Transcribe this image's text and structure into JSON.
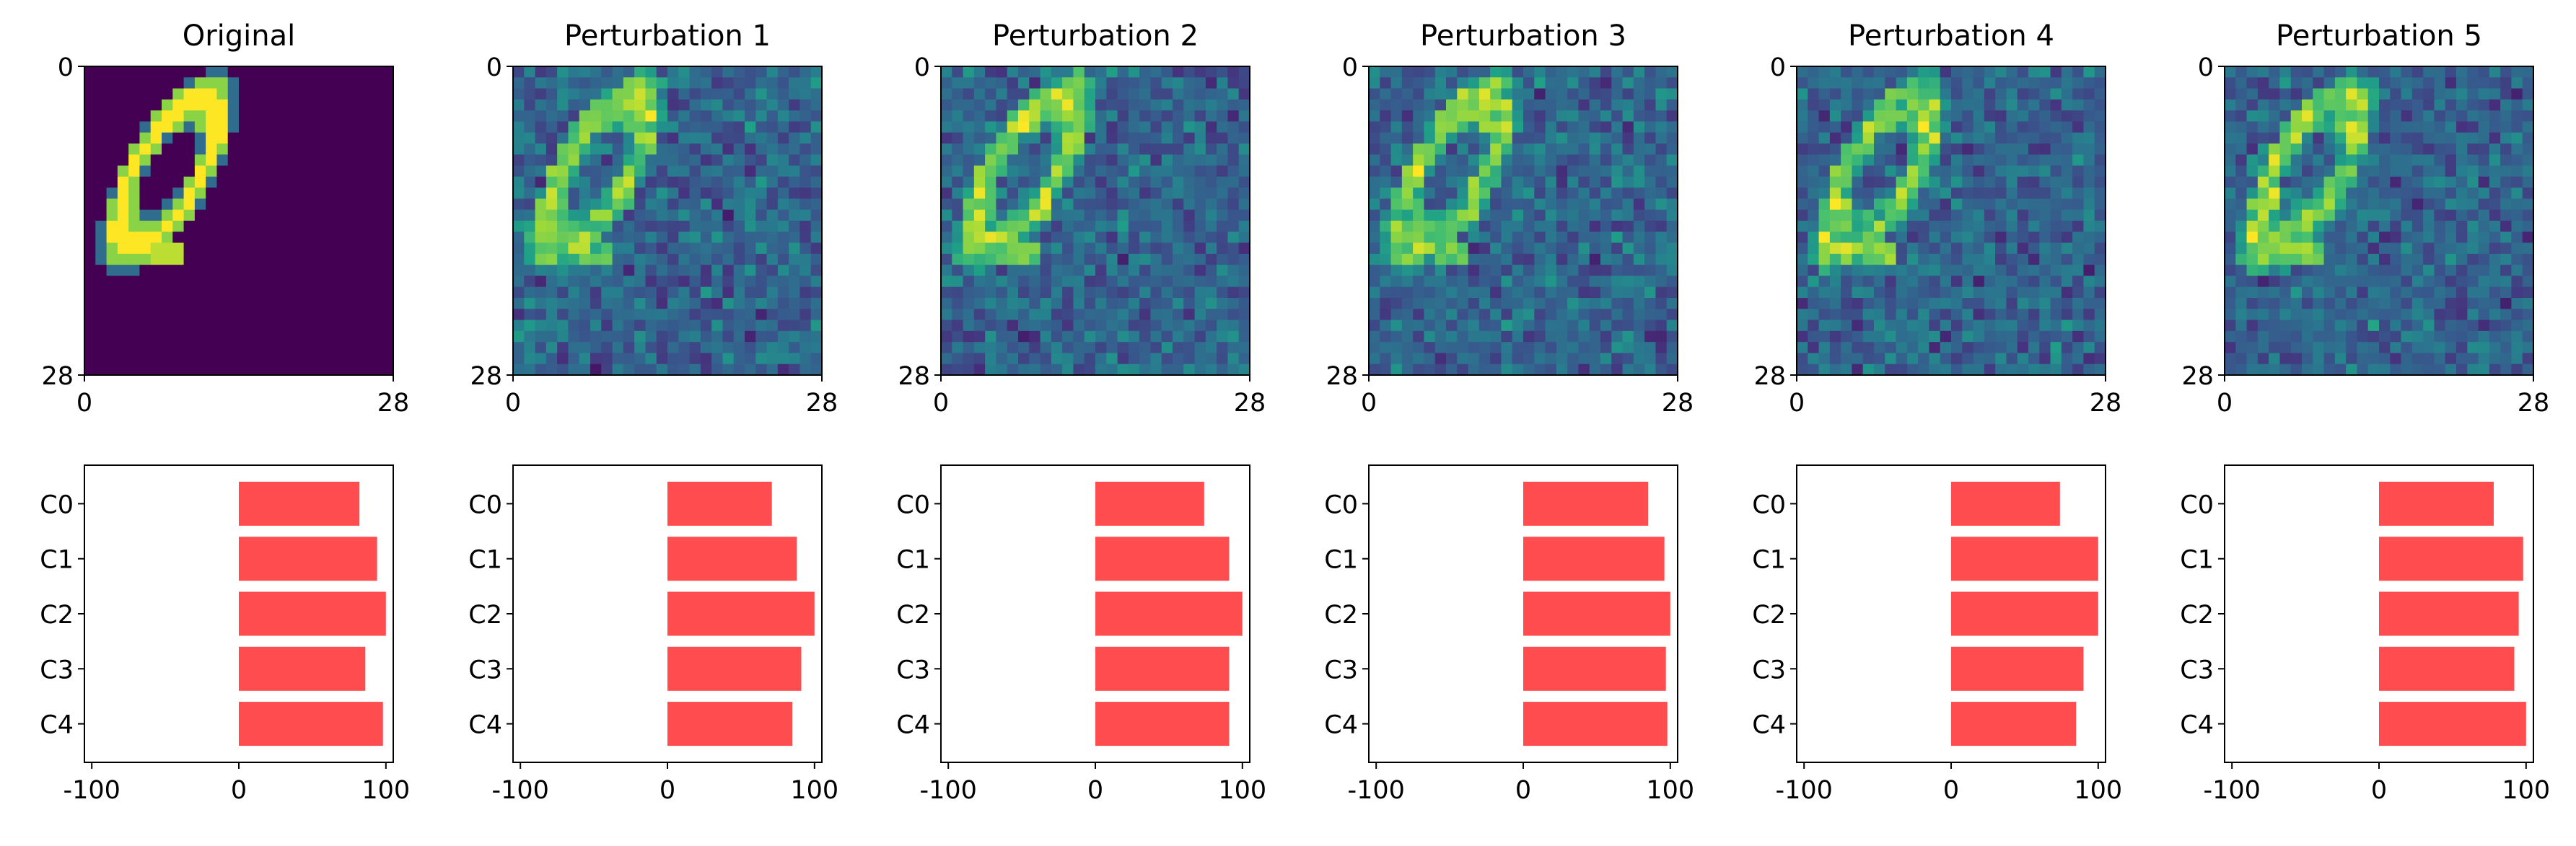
{
  "figure": {
    "panel_titles": [
      "Original",
      "Perturbation 1",
      "Perturbation 2",
      "Perturbation 3",
      "Perturbation 4",
      "Perturbation 5"
    ],
    "colors": {
      "bar": "#ff4c4f",
      "viridis": [
        "#440154",
        "#46327e",
        "#365c8d",
        "#277f8e",
        "#1fa187",
        "#4ac16d",
        "#a0da39",
        "#fde725"
      ]
    },
    "image_axes": {
      "x_ticks": [
        "0",
        "28"
      ],
      "y_ticks": [
        "0",
        "28"
      ]
    },
    "image_description": "28x28 heatmap of a handwritten digit 0 (viridis colormap); perturbations add pixel noise"
  },
  "chart_data": [
    {
      "type": "bar",
      "orientation": "horizontal",
      "panel": "Original",
      "categories": [
        "C0",
        "C1",
        "C2",
        "C3",
        "C4"
      ],
      "values": [
        82,
        94,
        100,
        86,
        98
      ],
      "xlim": [
        -105,
        105
      ],
      "xticks": [
        "-100",
        "0",
        "100"
      ]
    },
    {
      "type": "bar",
      "orientation": "horizontal",
      "panel": "Perturbation 1",
      "categories": [
        "C0",
        "C1",
        "C2",
        "C3",
        "C4"
      ],
      "values": [
        71,
        88,
        100,
        91,
        85
      ],
      "xlim": [
        -105,
        105
      ],
      "xticks": [
        "-100",
        "0",
        "100"
      ]
    },
    {
      "type": "bar",
      "orientation": "horizontal",
      "panel": "Perturbation 2",
      "categories": [
        "C0",
        "C1",
        "C2",
        "C3",
        "C4"
      ],
      "values": [
        74,
        91,
        100,
        91,
        91
      ],
      "xlim": [
        -105,
        105
      ],
      "xticks": [
        "-100",
        "0",
        "100"
      ]
    },
    {
      "type": "bar",
      "orientation": "horizontal",
      "panel": "Perturbation 3",
      "categories": [
        "C0",
        "C1",
        "C2",
        "C3",
        "C4"
      ],
      "values": [
        85,
        96,
        100,
        97,
        98
      ],
      "xlim": [
        -105,
        105
      ],
      "xticks": [
        "-100",
        "0",
        "100"
      ]
    },
    {
      "type": "bar",
      "orientation": "horizontal",
      "panel": "Perturbation 4",
      "categories": [
        "C0",
        "C1",
        "C2",
        "C3",
        "C4"
      ],
      "values": [
        74,
        100,
        100,
        90,
        85
      ],
      "xlim": [
        -105,
        105
      ],
      "xticks": [
        "-100",
        "0",
        "100"
      ]
    },
    {
      "type": "bar",
      "orientation": "horizontal",
      "panel": "Perturbation 5",
      "categories": [
        "C0",
        "C1",
        "C2",
        "C3",
        "C4"
      ],
      "values": [
        78,
        98,
        95,
        92,
        100
      ],
      "xlim": [
        -105,
        105
      ],
      "xticks": [
        "-100",
        "0",
        "100"
      ]
    }
  ]
}
